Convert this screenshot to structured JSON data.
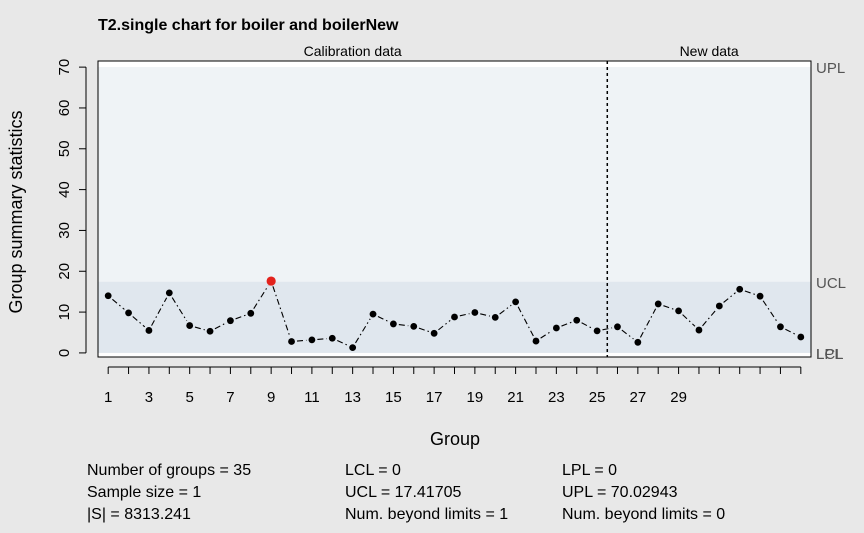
{
  "chart_data": {
    "type": "line",
    "title": "T2.single chart for boiler and boilerNew",
    "xlabel": "Group",
    "ylabel": "Group summary statistics",
    "sections": [
      {
        "label": "Calibration data",
        "from": 1,
        "to": 25
      },
      {
        "label": "New data",
        "from": 26,
        "to": 35
      }
    ],
    "xlim": [
      0.5,
      35.5
    ],
    "ylim": [
      -1,
      71.5
    ],
    "x_ticks": [
      1,
      3,
      5,
      7,
      9,
      11,
      13,
      15,
      17,
      19,
      21,
      23,
      25,
      27,
      29
    ],
    "y_ticks": [
      0,
      10,
      20,
      30,
      40,
      50,
      60,
      70
    ],
    "groups": [
      1,
      2,
      3,
      4,
      5,
      6,
      7,
      8,
      9,
      10,
      11,
      12,
      13,
      14,
      15,
      16,
      17,
      18,
      19,
      20,
      21,
      22,
      23,
      24,
      25,
      26,
      27,
      28,
      29,
      30,
      31,
      32,
      33,
      34,
      35
    ],
    "values": [
      14.0,
      9.8,
      5.5,
      14.7,
      6.7,
      5.3,
      7.9,
      9.7,
      17.6,
      2.8,
      3.2,
      3.6,
      1.3,
      9.5,
      7.1,
      6.5,
      4.8,
      8.8,
      9.9,
      8.7,
      12.5,
      2.9,
      6.1,
      8.0,
      5.4,
      6.4,
      2.6,
      12.0,
      10.3,
      5.6,
      11.5,
      15.6,
      13.9,
      6.4,
      3.9
    ],
    "beyond_limits_groups": [
      9
    ],
    "limits": {
      "LCL": 0,
      "UCL": 17.41705,
      "LPL": 0,
      "UPL": 70.02943
    },
    "limit_labels": {
      "UPL": "UPL",
      "UCL": "UCL",
      "LCL": "LCL",
      "LPL": "LPL"
    },
    "colors": {
      "background": "#e8e8e8",
      "plot_area": "#ffffff",
      "prediction_band": "#eff3f6",
      "control_band": "#e0e7ee",
      "point": "#000000",
      "beyond_limit_point": "#e3221c"
    }
  },
  "stats": {
    "col1": [
      "Number of groups = 35",
      "Sample size = 1",
      "|S| = 8313.241"
    ],
    "col2": [
      "LCL = 0",
      "UCL = 17.41705",
      "Num. beyond limits = 1"
    ],
    "col3": [
      "LPL = 0",
      "UPL = 70.02943",
      "Num. beyond limits = 0"
    ]
  }
}
